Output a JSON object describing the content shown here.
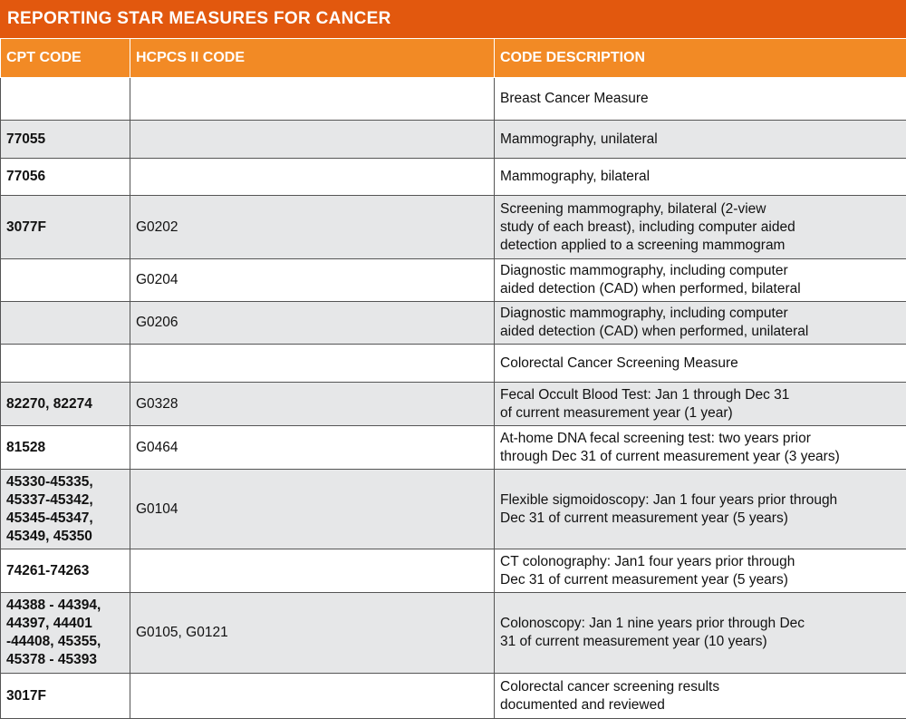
{
  "table": {
    "title": "REPORTING STAR MEASURES FOR CANCER",
    "headers": [
      "CPT CODE",
      "HCPCS II CODE",
      "CODE DESCRIPTION"
    ],
    "rows": [
      [
        [],
        [],
        [
          "Breast Cancer Measure"
        ]
      ],
      [
        [
          "77055"
        ],
        [],
        [
          "Mammography, unilateral"
        ]
      ],
      [
        [
          "77056"
        ],
        [],
        [
          "Mammography, bilateral"
        ]
      ],
      [
        [
          "3077F"
        ],
        [
          "G0202"
        ],
        [
          "Screening mammography, bilateral (2-view",
          "study of each breast), including computer aided",
          "detection applied to a screening mammogram"
        ]
      ],
      [
        [],
        [
          "G0204"
        ],
        [
          "Diagnostic mammography, including computer",
          "aided detection (CAD) when performed, bilateral"
        ]
      ],
      [
        [],
        [
          "G0206"
        ],
        [
          "Diagnostic mammography, including computer",
          "aided detection (CAD) when performed, unilateral"
        ]
      ],
      [
        [],
        [],
        [
          "Colorectal Cancer Screening Measure"
        ]
      ],
      [
        [
          "82270, 82274"
        ],
        [
          "G0328"
        ],
        [
          "Fecal Occult Blood Test: Jan 1 through Dec 31",
          "of current measurement year (1 year)"
        ]
      ],
      [
        [
          "81528"
        ],
        [
          "G0464"
        ],
        [
          "At-home DNA fecal screening test: two years prior",
          "through Dec 31 of current measurement year (3 years)"
        ]
      ],
      [
        [
          "45330-45335,",
          "45337-45342,",
          "45345-45347,",
          "45349, 45350"
        ],
        [
          "G0104"
        ],
        [
          "Flexible sigmoidoscopy: Jan 1 four years prior through",
          "Dec 31 of current measurement year (5 years)"
        ]
      ],
      [
        [
          "74261-74263"
        ],
        [],
        [
          "CT colonography: Jan1 four years prior through",
          "Dec 31 of current measurement year (5 years)"
        ]
      ],
      [
        [
          "44388 - 44394,",
          "44397, 44401",
          "-44408, 45355,",
          "45378 - 45393"
        ],
        [
          "G0105, G0121"
        ],
        [
          "Colonoscopy: Jan 1 nine years prior through Dec",
          "31 of current measurement year (10 years)"
        ]
      ],
      [
        [
          "3017F"
        ],
        [],
        [
          "Colorectal cancer screening results",
          "documented and reviewed"
        ]
      ]
    ]
  }
}
